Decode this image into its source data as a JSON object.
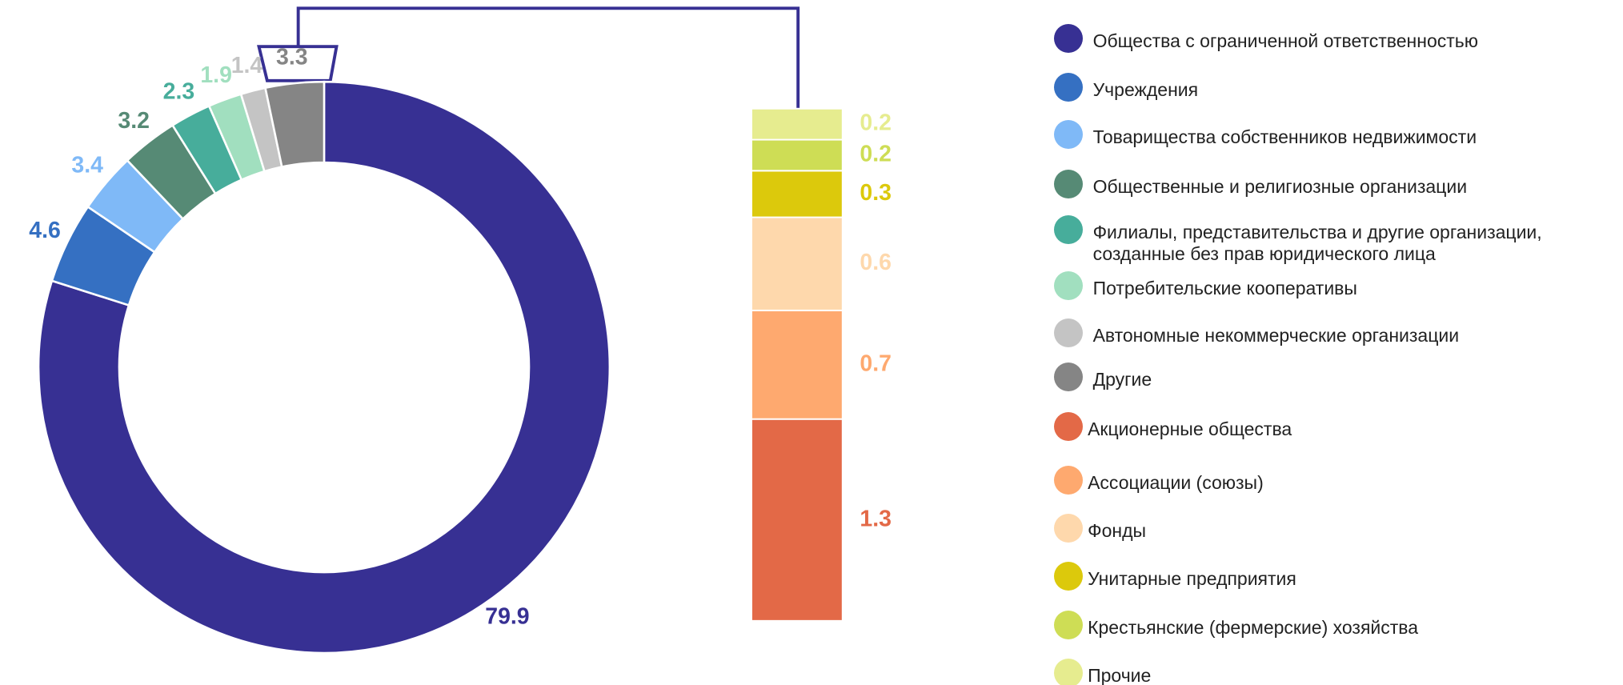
{
  "chart_data": [
    {
      "type": "donut",
      "categories": [
        "Общества с ограниченной ответственностью",
        "Учреждения",
        "Товарищества собственников недвижимости",
        "Общественные и религиозные организации",
        "Филиалы, представительства и другие организации, созданные без прав юридического лица",
        "Потребительские кооперативы",
        "Автономные некоммерческие организации",
        "Другие"
      ],
      "values": [
        79.9,
        4.6,
        3.4,
        3.2,
        2.3,
        1.9,
        1.4,
        3.3
      ],
      "colors": [
        "#373093",
        "#3570c2",
        "#7fb9f7",
        "#568a75",
        "#47ad9b",
        "#a1dfbf",
        "#c4c4c4",
        "#858585"
      ]
    },
    {
      "type": "stacked_bar",
      "categories": [
        "Акционерные общества",
        "Ассоциации (союзы)",
        "Фонды",
        "Унитарные  предприятия",
        "Крестьянские (фермерские) хозяйства",
        "Прочие"
      ],
      "values": [
        1.3,
        0.7,
        0.6,
        0.3,
        0.2,
        0.2
      ],
      "colors": [
        "#e36947",
        "#fea96f",
        "#fed8ac",
        "#dcc90c",
        "#cedd55",
        "#e6ec8f"
      ]
    }
  ]
}
